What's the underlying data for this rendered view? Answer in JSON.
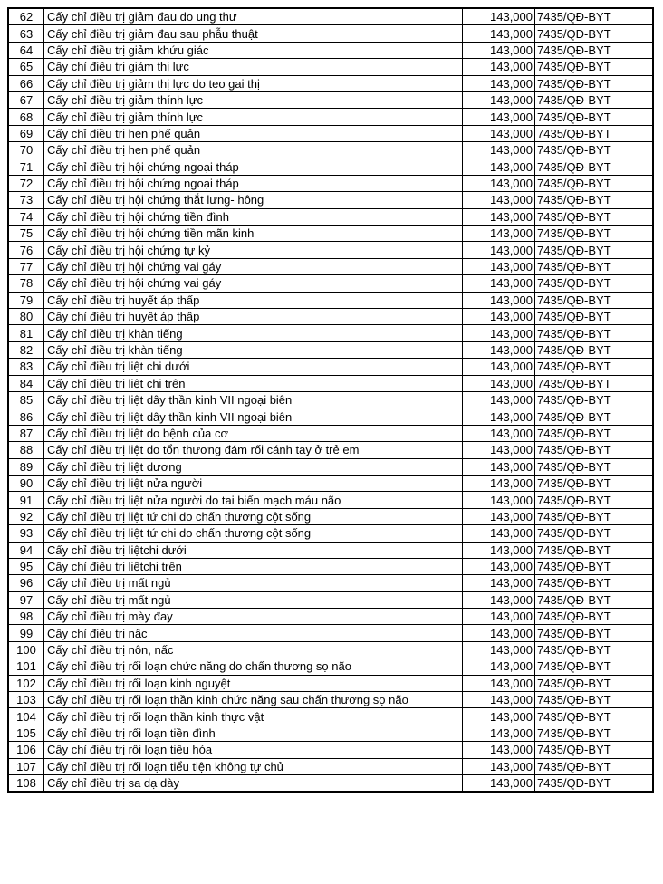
{
  "table": {
    "rows": [
      {
        "no": "62",
        "name": "Cấy chỉ điều trị giảm đau do ung thư",
        "price": "143,000",
        "code": "7435/QĐ-BYT"
      },
      {
        "no": "63",
        "name": "Cấy chỉ điều trị giảm đau sau phẫu thuật",
        "price": "143,000",
        "code": "7435/QĐ-BYT"
      },
      {
        "no": "64",
        "name": "Cấy chỉ điều trị giảm khứu giác",
        "price": "143,000",
        "code": "7435/QĐ-BYT"
      },
      {
        "no": "65",
        "name": "Cấy chỉ điều trị giảm thị lực",
        "price": "143,000",
        "code": "7435/QĐ-BYT"
      },
      {
        "no": "66",
        "name": "Cấy chỉ điều trị giảm thị lực do teo gai thị",
        "price": "143,000",
        "code": "7435/QĐ-BYT"
      },
      {
        "no": "67",
        "name": "Cấy chỉ điều trị giảm thính lực",
        "price": "143,000",
        "code": "7435/QĐ-BYT"
      },
      {
        "no": "68",
        "name": "Cấy chỉ điều trị giảm thính lực",
        "price": "143,000",
        "code": "7435/QĐ-BYT"
      },
      {
        "no": "69",
        "name": "Cấy chỉ điều trị hen phế quản",
        "price": "143,000",
        "code": "7435/QĐ-BYT"
      },
      {
        "no": "70",
        "name": "Cấy chỉ điều trị hen phế quản",
        "price": "143,000",
        "code": "7435/QĐ-BYT"
      },
      {
        "no": "71",
        "name": "Cấy chỉ điều trị hội chứng ngoại tháp",
        "price": "143,000",
        "code": "7435/QĐ-BYT"
      },
      {
        "no": "72",
        "name": "Cấy chỉ điều trị hội chứng ngoại tháp",
        "price": "143,000",
        "code": "7435/QĐ-BYT"
      },
      {
        "no": "73",
        "name": "Cấy chỉ điều trị hội chứng thắt lưng- hông",
        "price": "143,000",
        "code": "7435/QĐ-BYT"
      },
      {
        "no": "74",
        "name": "Cấy chỉ điều trị hội chứng tiền đình",
        "price": "143,000",
        "code": "7435/QĐ-BYT"
      },
      {
        "no": "75",
        "name": "Cấy chỉ điều trị hội chứng tiền mãn kinh",
        "price": "143,000",
        "code": "7435/QĐ-BYT"
      },
      {
        "no": "76",
        "name": "Cấy chỉ điều trị hội chứng tự kỷ",
        "price": "143,000",
        "code": "7435/QĐ-BYT"
      },
      {
        "no": "77",
        "name": "Cấy chỉ điều trị hội chứng vai gáy",
        "price": "143,000",
        "code": "7435/QĐ-BYT"
      },
      {
        "no": "78",
        "name": "Cấy chỉ điều trị hội chứng vai gáy",
        "price": "143,000",
        "code": "7435/QĐ-BYT"
      },
      {
        "no": "79",
        "name": "Cấy chỉ điều trị huyết áp thấp",
        "price": "143,000",
        "code": "7435/QĐ-BYT"
      },
      {
        "no": "80",
        "name": "Cấy chỉ điều trị huyết áp thấp",
        "price": "143,000",
        "code": "7435/QĐ-BYT"
      },
      {
        "no": "81",
        "name": "Cấy chỉ điều trị khàn tiếng",
        "price": "143,000",
        "code": "7435/QĐ-BYT"
      },
      {
        "no": "82",
        "name": "Cấy chỉ điều trị khàn tiếng",
        "price": "143,000",
        "code": "7435/QĐ-BYT"
      },
      {
        "no": "83",
        "name": "Cấy chỉ điều trị liệt chi dưới",
        "price": "143,000",
        "code": "7435/QĐ-BYT"
      },
      {
        "no": "84",
        "name": "Cấy chỉ điều trị liệt chi trên",
        "price": "143,000",
        "code": "7435/QĐ-BYT"
      },
      {
        "no": "85",
        "name": "Cấy chỉ điều trị liệt dây thần kinh VII ngoại biên",
        "price": "143,000",
        "code": "7435/QĐ-BYT"
      },
      {
        "no": "86",
        "name": "Cấy chỉ điều trị liệt dây thần kinh VII ngoại biên",
        "price": "143,000",
        "code": "7435/QĐ-BYT"
      },
      {
        "no": "87",
        "name": "Cấy chỉ điều trị liệt do bệnh của cơ",
        "price": "143,000",
        "code": "7435/QĐ-BYT"
      },
      {
        "no": "88",
        "name": "Cấy chỉ điều trị liệt do tổn thương đám rối cánh tay ở trẻ em",
        "price": "143,000",
        "code": "7435/QĐ-BYT"
      },
      {
        "no": "89",
        "name": "Cấy chỉ điều trị liệt dương",
        "price": "143,000",
        "code": "7435/QĐ-BYT"
      },
      {
        "no": "90",
        "name": "Cấy chỉ điều trị liệt nửa người",
        "price": "143,000",
        "code": "7435/QĐ-BYT"
      },
      {
        "no": "91",
        "name": "Cấy chỉ điều trị liệt nửa người do tai biến mạch máu não",
        "price": "143,000",
        "code": "7435/QĐ-BYT"
      },
      {
        "no": "92",
        "name": "Cấy chỉ điều trị liệt tứ chi do chấn thương cột sống",
        "price": "143,000",
        "code": "7435/QĐ-BYT"
      },
      {
        "no": "93",
        "name": "Cấy chỉ điều trị liệt tứ chi do chấn thương cột sống",
        "price": "143,000",
        "code": "7435/QĐ-BYT"
      },
      {
        "no": "94",
        "name": "Cấy chỉ điều trị liệtchi dưới",
        "price": "143,000",
        "code": "7435/QĐ-BYT"
      },
      {
        "no": "95",
        "name": "Cấy chỉ điều trị liệtchi trên",
        "price": "143,000",
        "code": "7435/QĐ-BYT"
      },
      {
        "no": "96",
        "name": "Cấy chỉ điều trị mất ngủ",
        "price": "143,000",
        "code": "7435/QĐ-BYT"
      },
      {
        "no": "97",
        "name": "Cấy chỉ điều trị mất ngủ",
        "price": "143,000",
        "code": "7435/QĐ-BYT"
      },
      {
        "no": "98",
        "name": "Cấy chỉ điều trị mày đay",
        "price": "143,000",
        "code": "7435/QĐ-BYT"
      },
      {
        "no": "99",
        "name": "Cấy chỉ điều trị nấc",
        "price": "143,000",
        "code": "7435/QĐ-BYT"
      },
      {
        "no": "100",
        "name": "Cấy chỉ điều trị nôn, nấc",
        "price": "143,000",
        "code": "7435/QĐ-BYT"
      },
      {
        "no": "101",
        "name": "Cấy chỉ điều trị rối loạn chức năng do chấn thương sọ não",
        "price": "143,000",
        "code": "7435/QĐ-BYT"
      },
      {
        "no": "102",
        "name": "Cấy chỉ điều trị rối loạn kinh nguyệt",
        "price": "143,000",
        "code": "7435/QĐ-BYT"
      },
      {
        "no": "103",
        "name": "Cấy chỉ điều trị rối loạn thần kinh chức năng sau chấn thương sọ não",
        "price": "143,000",
        "code": "7435/QĐ-BYT"
      },
      {
        "no": "104",
        "name": "Cấy chỉ điều trị rối loạn thần kinh thực vật",
        "price": "143,000",
        "code": "7435/QĐ-BYT"
      },
      {
        "no": "105",
        "name": "Cấy chỉ điều trị rối loạn tiền đình",
        "price": "143,000",
        "code": "7435/QĐ-BYT"
      },
      {
        "no": "106",
        "name": "Cấy chỉ điều trị rối loạn tiêu hóa",
        "price": "143,000",
        "code": "7435/QĐ-BYT"
      },
      {
        "no": "107",
        "name": "Cấy chỉ điều trị rối loạn tiểu tiện không tự chủ",
        "price": "143,000",
        "code": "7435/QĐ-BYT"
      },
      {
        "no": "108",
        "name": "Cấy chỉ điều trị sa dạ dày",
        "price": "143,000",
        "code": "7435/QĐ-BYT"
      }
    ]
  }
}
